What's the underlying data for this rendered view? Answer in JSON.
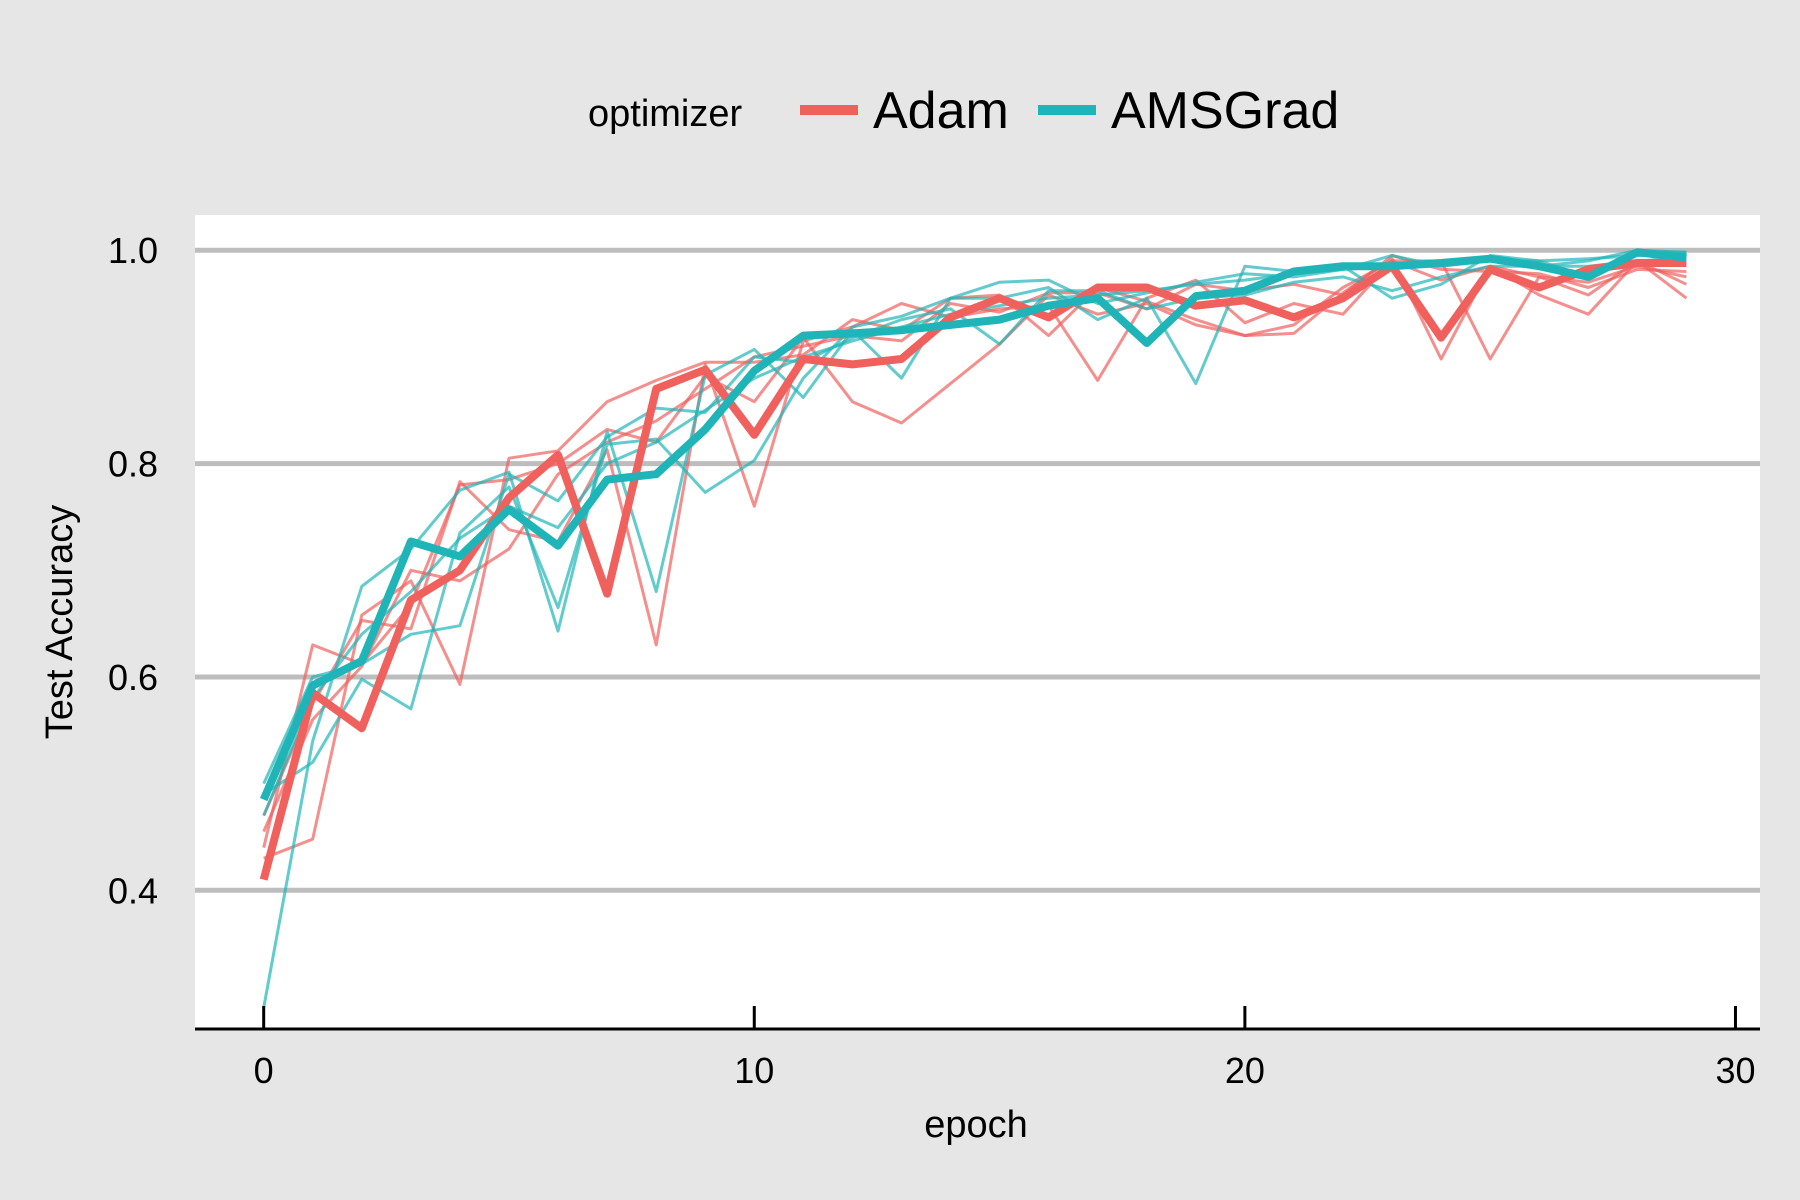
{
  "chart_data": {
    "type": "line",
    "xlabel": "epoch",
    "ylabel": "Test Accuracy",
    "xlim": [
      -1.4,
      30.5
    ],
    "ylim": [
      0.27,
      1.033
    ],
    "x_ticks": [
      0,
      10,
      20,
      30
    ],
    "x_tick_labels": [
      "0",
      "10",
      "20",
      "30"
    ],
    "y_ticks": [
      0.4,
      0.6,
      0.8,
      1.0
    ],
    "y_tick_labels": [
      "0.4",
      "0.6",
      "0.8",
      "1.0"
    ],
    "grid": "horizontal",
    "legend": {
      "title": "optimizer",
      "position": "top",
      "entries": [
        {
          "label": "Adam",
          "color": "#f0605d"
        },
        {
          "label": "AMSGrad",
          "color": "#1fb5b8"
        }
      ]
    },
    "x": [
      0,
      1,
      2,
      3,
      4,
      5,
      6,
      7,
      8,
      9,
      10,
      11,
      12,
      13,
      14,
      15,
      16,
      17,
      18,
      19,
      20,
      21,
      22,
      23,
      24,
      25,
      26,
      27,
      28,
      29
    ],
    "series": [
      {
        "group": "Adam",
        "role": "mean",
        "color": "#f0605d",
        "values": [
          0.41,
          0.585,
          0.552,
          0.672,
          0.7,
          0.768,
          0.808,
          0.678,
          0.87,
          0.888,
          0.827,
          0.898,
          0.893,
          0.898,
          0.937,
          0.955,
          0.937,
          0.965,
          0.965,
          0.948,
          0.953,
          0.937,
          0.955,
          0.985,
          0.918,
          0.982,
          0.965,
          0.982,
          0.988,
          0.988
        ]
      },
      {
        "group": "AMSGrad",
        "role": "mean",
        "color": "#1fb5b8",
        "values": [
          0.485,
          0.592,
          0.615,
          0.727,
          0.713,
          0.757,
          0.723,
          0.785,
          0.79,
          0.832,
          0.887,
          0.92,
          0.922,
          0.925,
          0.93,
          0.935,
          0.948,
          0.955,
          0.913,
          0.957,
          0.962,
          0.98,
          0.985,
          0.985,
          0.988,
          0.992,
          0.985,
          0.975,
          0.998,
          0.993
        ]
      },
      {
        "group": "Adam",
        "role": "run",
        "color": "#f0605d",
        "values": [
          0.44,
          0.63,
          0.612,
          0.668,
          0.78,
          0.785,
          0.8,
          0.832,
          0.82,
          0.882,
          0.858,
          0.918,
          0.858,
          0.838,
          0.875,
          0.912,
          0.958,
          0.94,
          0.95,
          0.93,
          0.92,
          0.922,
          0.96,
          0.992,
          0.898,
          0.985,
          0.975,
          0.97,
          0.985,
          0.975
        ]
      },
      {
        "group": "Adam",
        "role": "run",
        "color": "#f0605d",
        "values": [
          0.43,
          0.448,
          0.658,
          0.69,
          0.593,
          0.805,
          0.812,
          0.858,
          0.878,
          0.895,
          0.895,
          0.902,
          0.935,
          0.925,
          0.955,
          0.958,
          0.92,
          0.965,
          0.952,
          0.935,
          0.92,
          0.93,
          0.965,
          0.99,
          0.99,
          0.898,
          0.975,
          0.958,
          0.99,
          0.955
        ]
      },
      {
        "group": "Adam",
        "role": "run",
        "color": "#f0605d",
        "values": [
          0.47,
          0.575,
          0.653,
          0.645,
          0.783,
          0.738,
          0.727,
          0.813,
          0.63,
          0.893,
          0.76,
          0.915,
          0.928,
          0.95,
          0.937,
          0.945,
          0.948,
          0.878,
          0.955,
          0.972,
          0.932,
          0.95,
          0.94,
          0.99,
          0.972,
          0.985,
          0.958,
          0.94,
          0.99,
          0.968
        ]
      },
      {
        "group": "Adam",
        "role": "run",
        "color": "#f0605d",
        "values": [
          0.455,
          0.56,
          0.61,
          0.7,
          0.69,
          0.72,
          0.79,
          0.82,
          0.84,
          0.87,
          0.9,
          0.91,
          0.92,
          0.915,
          0.95,
          0.942,
          0.96,
          0.96,
          0.945,
          0.968,
          0.962,
          0.968,
          0.958,
          0.995,
          0.982,
          0.98,
          0.978,
          0.965,
          0.982,
          0.98
        ]
      },
      {
        "group": "AMSGrad",
        "role": "run",
        "color": "#1fb5b8",
        "values": [
          0.29,
          0.54,
          0.685,
          0.72,
          0.775,
          0.792,
          0.643,
          0.83,
          0.68,
          0.883,
          0.907,
          0.862,
          0.925,
          0.88,
          0.955,
          0.955,
          0.965,
          0.935,
          0.955,
          0.875,
          0.985,
          0.98,
          0.985,
          0.955,
          0.968,
          0.995,
          0.99,
          0.975,
          0.998,
          0.998
        ]
      },
      {
        "group": "AMSGrad",
        "role": "run",
        "color": "#1fb5b8",
        "values": [
          0.49,
          0.52,
          0.598,
          0.57,
          0.735,
          0.778,
          0.665,
          0.818,
          0.823,
          0.773,
          0.803,
          0.88,
          0.928,
          0.938,
          0.955,
          0.97,
          0.972,
          0.95,
          0.96,
          0.97,
          0.978,
          0.975,
          0.982,
          0.995,
          0.985,
          0.99,
          0.985,
          0.99,
          1.0,
          0.998
        ]
      },
      {
        "group": "AMSGrad",
        "role": "run",
        "color": "#1fb5b8",
        "values": [
          0.5,
          0.6,
          0.612,
          0.64,
          0.648,
          0.79,
          0.765,
          0.825,
          0.852,
          0.848,
          0.9,
          0.895,
          0.918,
          0.935,
          0.945,
          0.912,
          0.962,
          0.962,
          0.945,
          0.955,
          0.958,
          0.97,
          0.975,
          0.962,
          0.975,
          0.985,
          0.985,
          0.985,
          0.99,
          0.993
        ]
      },
      {
        "group": "AMSGrad",
        "role": "run",
        "color": "#1fb5b8",
        "values": [
          0.47,
          0.58,
          0.64,
          0.68,
          0.73,
          0.76,
          0.74,
          0.8,
          0.82,
          0.85,
          0.88,
          0.9,
          0.915,
          0.928,
          0.94,
          0.948,
          0.955,
          0.958,
          0.962,
          0.968,
          0.972,
          0.978,
          0.982,
          0.985,
          0.988,
          0.99,
          0.99,
          0.992,
          0.995,
          0.996
        ]
      }
    ]
  }
}
